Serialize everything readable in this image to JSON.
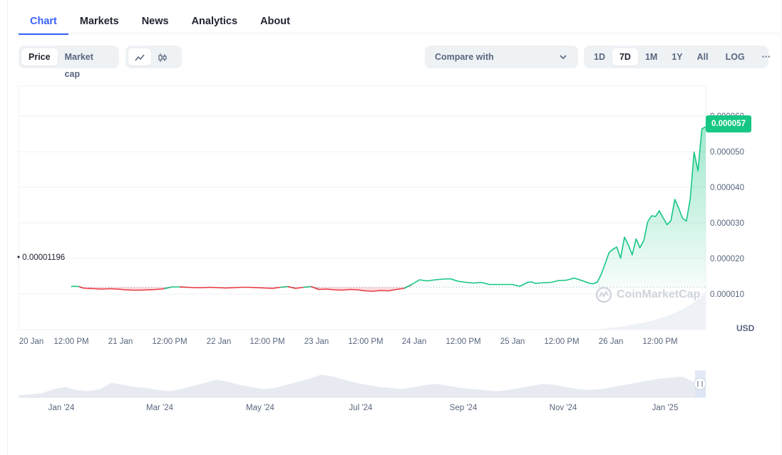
{
  "tabs": [
    {
      "label": "Chart",
      "active": true
    },
    {
      "label": "Markets",
      "active": false
    },
    {
      "label": "News",
      "active": false
    },
    {
      "label": "Analytics",
      "active": false
    },
    {
      "label": "About",
      "active": false
    }
  ],
  "toolbar": {
    "metric": [
      "Price",
      "Market cap"
    ],
    "metric_selected": "Price",
    "chart_style_icons": [
      "line-chart-icon",
      "candlestick-icon"
    ],
    "compare_label": "Compare with",
    "ranges": [
      "1D",
      "7D",
      "1M",
      "1Y",
      "All"
    ],
    "range_selected": "7D",
    "log_label": "LOG",
    "more_label": "···"
  },
  "chart_data": {
    "type": "line",
    "currency": "USD",
    "current_price_label": "0.000057",
    "reference_price_label": "0.00001196",
    "reference_price": 1.196e-05,
    "y_ticks": [
      "0.000010",
      "0.000020",
      "0.000030",
      "0.000040",
      "0.000050",
      "0.000060"
    ],
    "y_tick_values": [
      1e-05,
      2e-05,
      3e-05,
      4e-05,
      5e-05,
      6e-05
    ],
    "ylim": [
      0.0,
      6.84e-05
    ],
    "x_ticks": [
      "20 Jan",
      "12:00 PM",
      "21 Jan",
      "12:00 PM",
      "22 Jan",
      "12:00 PM",
      "23 Jan",
      "12:00 PM",
      "24 Jan",
      "12:00 PM",
      "25 Jan",
      "12:00 PM",
      "26 Jan",
      "12:00 PM"
    ],
    "x_tick_hours": [
      0,
      12,
      24,
      36,
      48,
      60,
      72,
      84,
      96,
      108,
      120,
      132,
      144,
      156
    ],
    "series": [
      {
        "x_hours": [
          6,
          7,
          8,
          9,
          10,
          12,
          14,
          16,
          18,
          20,
          22,
          24,
          26,
          28,
          30,
          32,
          34,
          36,
          38,
          40,
          42,
          44,
          46,
          48,
          50,
          52,
          54,
          56,
          58,
          60,
          62,
          64,
          66,
          68,
          70,
          72,
          74,
          76,
          78,
          80,
          82,
          84,
          86,
          88,
          90,
          92,
          94,
          96,
          98,
          100,
          102,
          104,
          106,
          108,
          110,
          112,
          114,
          116,
          118,
          120,
          122,
          124,
          125,
          126,
          128,
          130,
          132,
          134,
          136,
          138,
          140,
          141,
          142,
          143,
          144,
          145,
          146,
          147,
          148,
          149,
          150,
          151,
          152,
          153,
          154,
          155,
          156,
          157,
          158,
          159,
          160,
          161,
          162,
          163,
          164,
          165,
          166,
          167,
          168,
          169,
          170
        ],
        "values": [
          1.22e-05,
          1.22e-05,
          1.21e-05,
          1.17e-05,
          1.16e-05,
          1.15e-05,
          1.14e-05,
          1.15e-05,
          1.14e-05,
          1.12e-05,
          1.11e-05,
          1.11e-05,
          1.12e-05,
          1.13e-05,
          1.15e-05,
          1.2e-05,
          1.2e-05,
          1.19e-05,
          1.18e-05,
          1.18e-05,
          1.19e-05,
          1.18e-05,
          1.17e-05,
          1.18e-05,
          1.19e-05,
          1.19e-05,
          1.18e-05,
          1.17e-05,
          1.16e-05,
          1.19e-05,
          1.21e-05,
          1.16e-05,
          1.19e-05,
          1.21e-05,
          1.13e-05,
          1.14e-05,
          1.12e-05,
          1.11e-05,
          1.13e-05,
          1.12e-05,
          1.09e-05,
          1.08e-05,
          1.1e-05,
          1.09e-05,
          1.13e-05,
          1.16e-05,
          1.27e-05,
          1.4e-05,
          1.37e-05,
          1.4e-05,
          1.42e-05,
          1.43e-05,
          1.36e-05,
          1.33e-05,
          1.31e-05,
          1.33e-05,
          1.27e-05,
          1.27e-05,
          1.27e-05,
          1.27e-05,
          1.22e-05,
          1.33e-05,
          1.34e-05,
          1.3e-05,
          1.32e-05,
          1.33e-05,
          1.38e-05,
          1.39e-05,
          1.45e-05,
          1.38e-05,
          1.3e-05,
          1.29e-05,
          1.34e-05,
          1.56e-05,
          1.85e-05,
          2.16e-05,
          2.26e-05,
          2.32e-05,
          2.01e-05,
          2.6e-05,
          2.38e-05,
          2.1e-05,
          2.55e-05,
          2.3e-05,
          2.51e-05,
          3.03e-05,
          3.2e-05,
          3.18e-05,
          3.34e-05,
          3.14e-05,
          2.95e-05,
          3.06e-05,
          3.66e-05,
          3.42e-05,
          3.13e-05,
          3.05e-05,
          3.68e-05,
          4.99e-05,
          4.46e-05,
          5.64e-05,
          5.7e-05
        ]
      }
    ],
    "colors": {
      "up": "#16c784",
      "down": "#ea3943",
      "accent": "#3861fb"
    },
    "grid": true
  },
  "navigator": {
    "x_ticks": [
      "Jan '24",
      "Mar '24",
      "May '24",
      "Jul '24",
      "Sep '24",
      "Nov '24",
      "Jan '25"
    ],
    "volume_profile": [
      2,
      3,
      4,
      8,
      10,
      7,
      6,
      8,
      14,
      12,
      10,
      9,
      7,
      6,
      8,
      11,
      14,
      17,
      15,
      12,
      10,
      8,
      9,
      12,
      15,
      18,
      22,
      20,
      17,
      14,
      12,
      10,
      9,
      8,
      10,
      12,
      13,
      11,
      9,
      8,
      7,
      6,
      7,
      9,
      11,
      13,
      12,
      10,
      8,
      7,
      8,
      10,
      12,
      14,
      16,
      18,
      19,
      20,
      15,
      12
    ]
  },
  "watermark": "CoinMarketCap"
}
